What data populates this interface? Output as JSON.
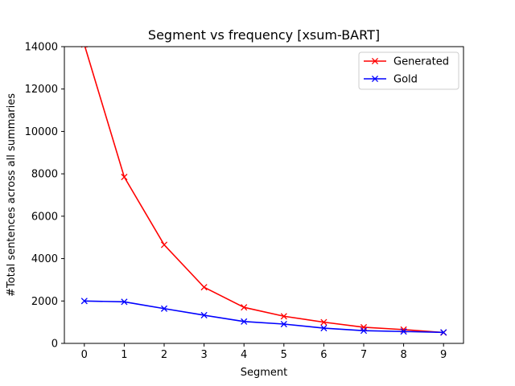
{
  "chart_data": {
    "type": "line",
    "title": "Segment vs frequency [xsum-BART]",
    "xlabel": "Segment",
    "ylabel": "#Total sentences across all summaries",
    "x": [
      0,
      1,
      2,
      3,
      4,
      5,
      6,
      7,
      8,
      9
    ],
    "xlim": [
      -0.5,
      9.5
    ],
    "ylim": [
      0,
      14000
    ],
    "xticks": [
      0,
      1,
      2,
      3,
      4,
      5,
      6,
      7,
      8,
      9
    ],
    "yticks": [
      0,
      2000,
      4000,
      6000,
      8000,
      10000,
      12000,
      14000
    ],
    "grid": false,
    "legend_position": "top-right",
    "series": [
      {
        "name": "Generated",
        "color": "#ff0000",
        "marker": "x",
        "values": [
          14100,
          7850,
          4650,
          2650,
          1700,
          1280,
          1000,
          760,
          650,
          510
        ]
      },
      {
        "name": "Gold",
        "color": "#0000ff",
        "marker": "x",
        "values": [
          2000,
          1960,
          1640,
          1330,
          1030,
          910,
          720,
          600,
          560,
          520
        ]
      }
    ]
  }
}
